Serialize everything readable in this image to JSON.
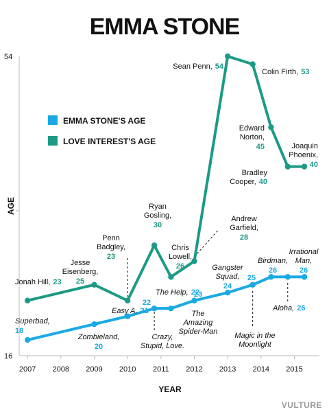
{
  "colors": {
    "emma": "#1aa9e4",
    "love": "#1c9a86",
    "text": "#111111",
    "axis": "#bbbbbb",
    "source": "#9a9a9a"
  },
  "source": "VULTURE",
  "chart_data": {
    "type": "line",
    "title": "EMMA STONE",
    "xlabel": "YEAR",
    "ylabel": "AGE",
    "xlim": [
      2006.75,
      2015.75
    ],
    "ylim": [
      16,
      54
    ],
    "x_ticks": [
      "2007",
      "2008",
      "2009",
      "2010",
      "2011",
      "2012",
      "2013",
      "2014",
      "2015"
    ],
    "y_ticks": [
      "54",
      "16"
    ],
    "legend_position": "top-left",
    "series": [
      {
        "name": "EMMA STONE'S AGE",
        "color_key": "emma",
        "points": [
          {
            "x": 2007,
            "y": 18,
            "film": "Superbad"
          },
          {
            "x": 2009,
            "y": 20,
            "film": "Zombieland"
          },
          {
            "x": 2010,
            "y": 21,
            "film": "Easy A"
          },
          {
            "x": 2010.8,
            "y": 22,
            "film": "Crazy, Stupid, Love."
          },
          {
            "x": 2011.3,
            "y": 22,
            "film": "The Help"
          },
          {
            "x": 2012,
            "y": 23,
            "film": "The Amazing Spider-Man"
          },
          {
            "x": 2013,
            "y": 24,
            "film": "Gangster Squad"
          },
          {
            "x": 2013.75,
            "y": 25,
            "film": "Magic in the Moonlight"
          },
          {
            "x": 2014.3,
            "y": 26,
            "film": "Birdman"
          },
          {
            "x": 2014.8,
            "y": 26,
            "film": "Aloha"
          },
          {
            "x": 2015.3,
            "y": 26,
            "film": "Irrational Man"
          }
        ]
      },
      {
        "name": "LOVE INTEREST'S AGE",
        "color_key": "love",
        "points": [
          {
            "x": 2007,
            "y": 23,
            "actor": "Jonah Hill"
          },
          {
            "x": 2009,
            "y": 25,
            "actor": "Jesse Eisenberg"
          },
          {
            "x": 2010,
            "y": 23,
            "actor": "Penn Badgley"
          },
          {
            "x": 2010.8,
            "y": 30,
            "actor": "Ryan Gosling"
          },
          {
            "x": 2011.3,
            "y": 26,
            "actor": "Chris Lowell"
          },
          {
            "x": 2012,
            "y": 28,
            "actor": "Andrew Garfield"
          },
          {
            "x": 2013,
            "y": 54,
            "actor": "Sean Penn"
          },
          {
            "x": 2013.75,
            "y": 53,
            "actor": "Colin Firth"
          },
          {
            "x": 2014.3,
            "y": 45,
            "actor": "Edward Norton"
          },
          {
            "x": 2014.8,
            "y": 40,
            "actor": "Bradley Cooper"
          },
          {
            "x": 2015.3,
            "y": 40,
            "actor": "Joaquin Phoenix"
          }
        ]
      }
    ],
    "annotations": [
      {
        "lines": [
          "Jonah Hill,"
        ],
        "age": "23",
        "series": "love",
        "italic": false
      },
      {
        "lines": [
          "Jesse",
          "Eisenberg,"
        ],
        "age": "25",
        "series": "love",
        "italic": false
      },
      {
        "lines": [
          "Penn",
          "Badgley,"
        ],
        "age": "23",
        "series": "love",
        "italic": false
      },
      {
        "lines": [
          "Ryan",
          "Gosling,"
        ],
        "age": "30",
        "series": "love",
        "italic": false
      },
      {
        "lines": [
          "Chris",
          "Lowell,"
        ],
        "age": "26",
        "series": "love",
        "italic": false
      },
      {
        "lines": [
          "Andrew",
          "Garfield,"
        ],
        "age": "28",
        "series": "love",
        "italic": false
      },
      {
        "lines": [
          "Sean Penn,"
        ],
        "age": "54",
        "series": "love",
        "italic": false
      },
      {
        "lines": [
          "Colin Firth,"
        ],
        "age": "53",
        "series": "love",
        "italic": false
      },
      {
        "lines": [
          "Edward",
          "Norton,"
        ],
        "age": "45",
        "series": "love",
        "italic": false
      },
      {
        "lines": [
          "Bradley",
          "Cooper,"
        ],
        "age": "40",
        "series": "love",
        "italic": false
      },
      {
        "lines": [
          "Joaquin",
          "Phoenix,"
        ],
        "age": "40",
        "series": "love",
        "italic": false
      },
      {
        "lines": [
          "Superbad,"
        ],
        "age": "18",
        "series": "emma",
        "italic": true
      },
      {
        "lines": [
          "Zombieland,"
        ],
        "age": "20",
        "series": "emma",
        "italic": true
      },
      {
        "lines": [
          "Easy A,"
        ],
        "age": "21",
        "series": "emma",
        "italic": true
      },
      {
        "lines": [],
        "age": "22",
        "series": "emma",
        "italic": true
      },
      {
        "lines": [
          "Crazy,",
          "Stupid, Love."
        ],
        "age": "",
        "series": "emma",
        "italic": true
      },
      {
        "lines": [
          "The Help,"
        ],
        "age": "22",
        "series": "emma",
        "italic": true
      },
      {
        "lines": [],
        "age": "23",
        "series": "emma",
        "italic": true
      },
      {
        "lines": [
          "The",
          "Amazing",
          "Spider-Man"
        ],
        "age": "",
        "series": "emma",
        "italic": true
      },
      {
        "lines": [
          "Gangster",
          "Squad,"
        ],
        "age": "24",
        "series": "emma",
        "italic": true
      },
      {
        "lines": [],
        "age": "25",
        "series": "emma",
        "italic": true
      },
      {
        "lines": [
          "Magic in the",
          "Moonlight"
        ],
        "age": "",
        "series": "emma",
        "italic": true
      },
      {
        "lines": [
          "Birdman,"
        ],
        "age": "26",
        "series": "emma",
        "italic": true
      },
      {
        "lines": [
          "Aloha,"
        ],
        "age": "26",
        "series": "emma",
        "italic": true
      },
      {
        "lines": [
          "Irrational",
          "Man,"
        ],
        "age": "26",
        "series": "emma",
        "italic": true
      }
    ]
  }
}
